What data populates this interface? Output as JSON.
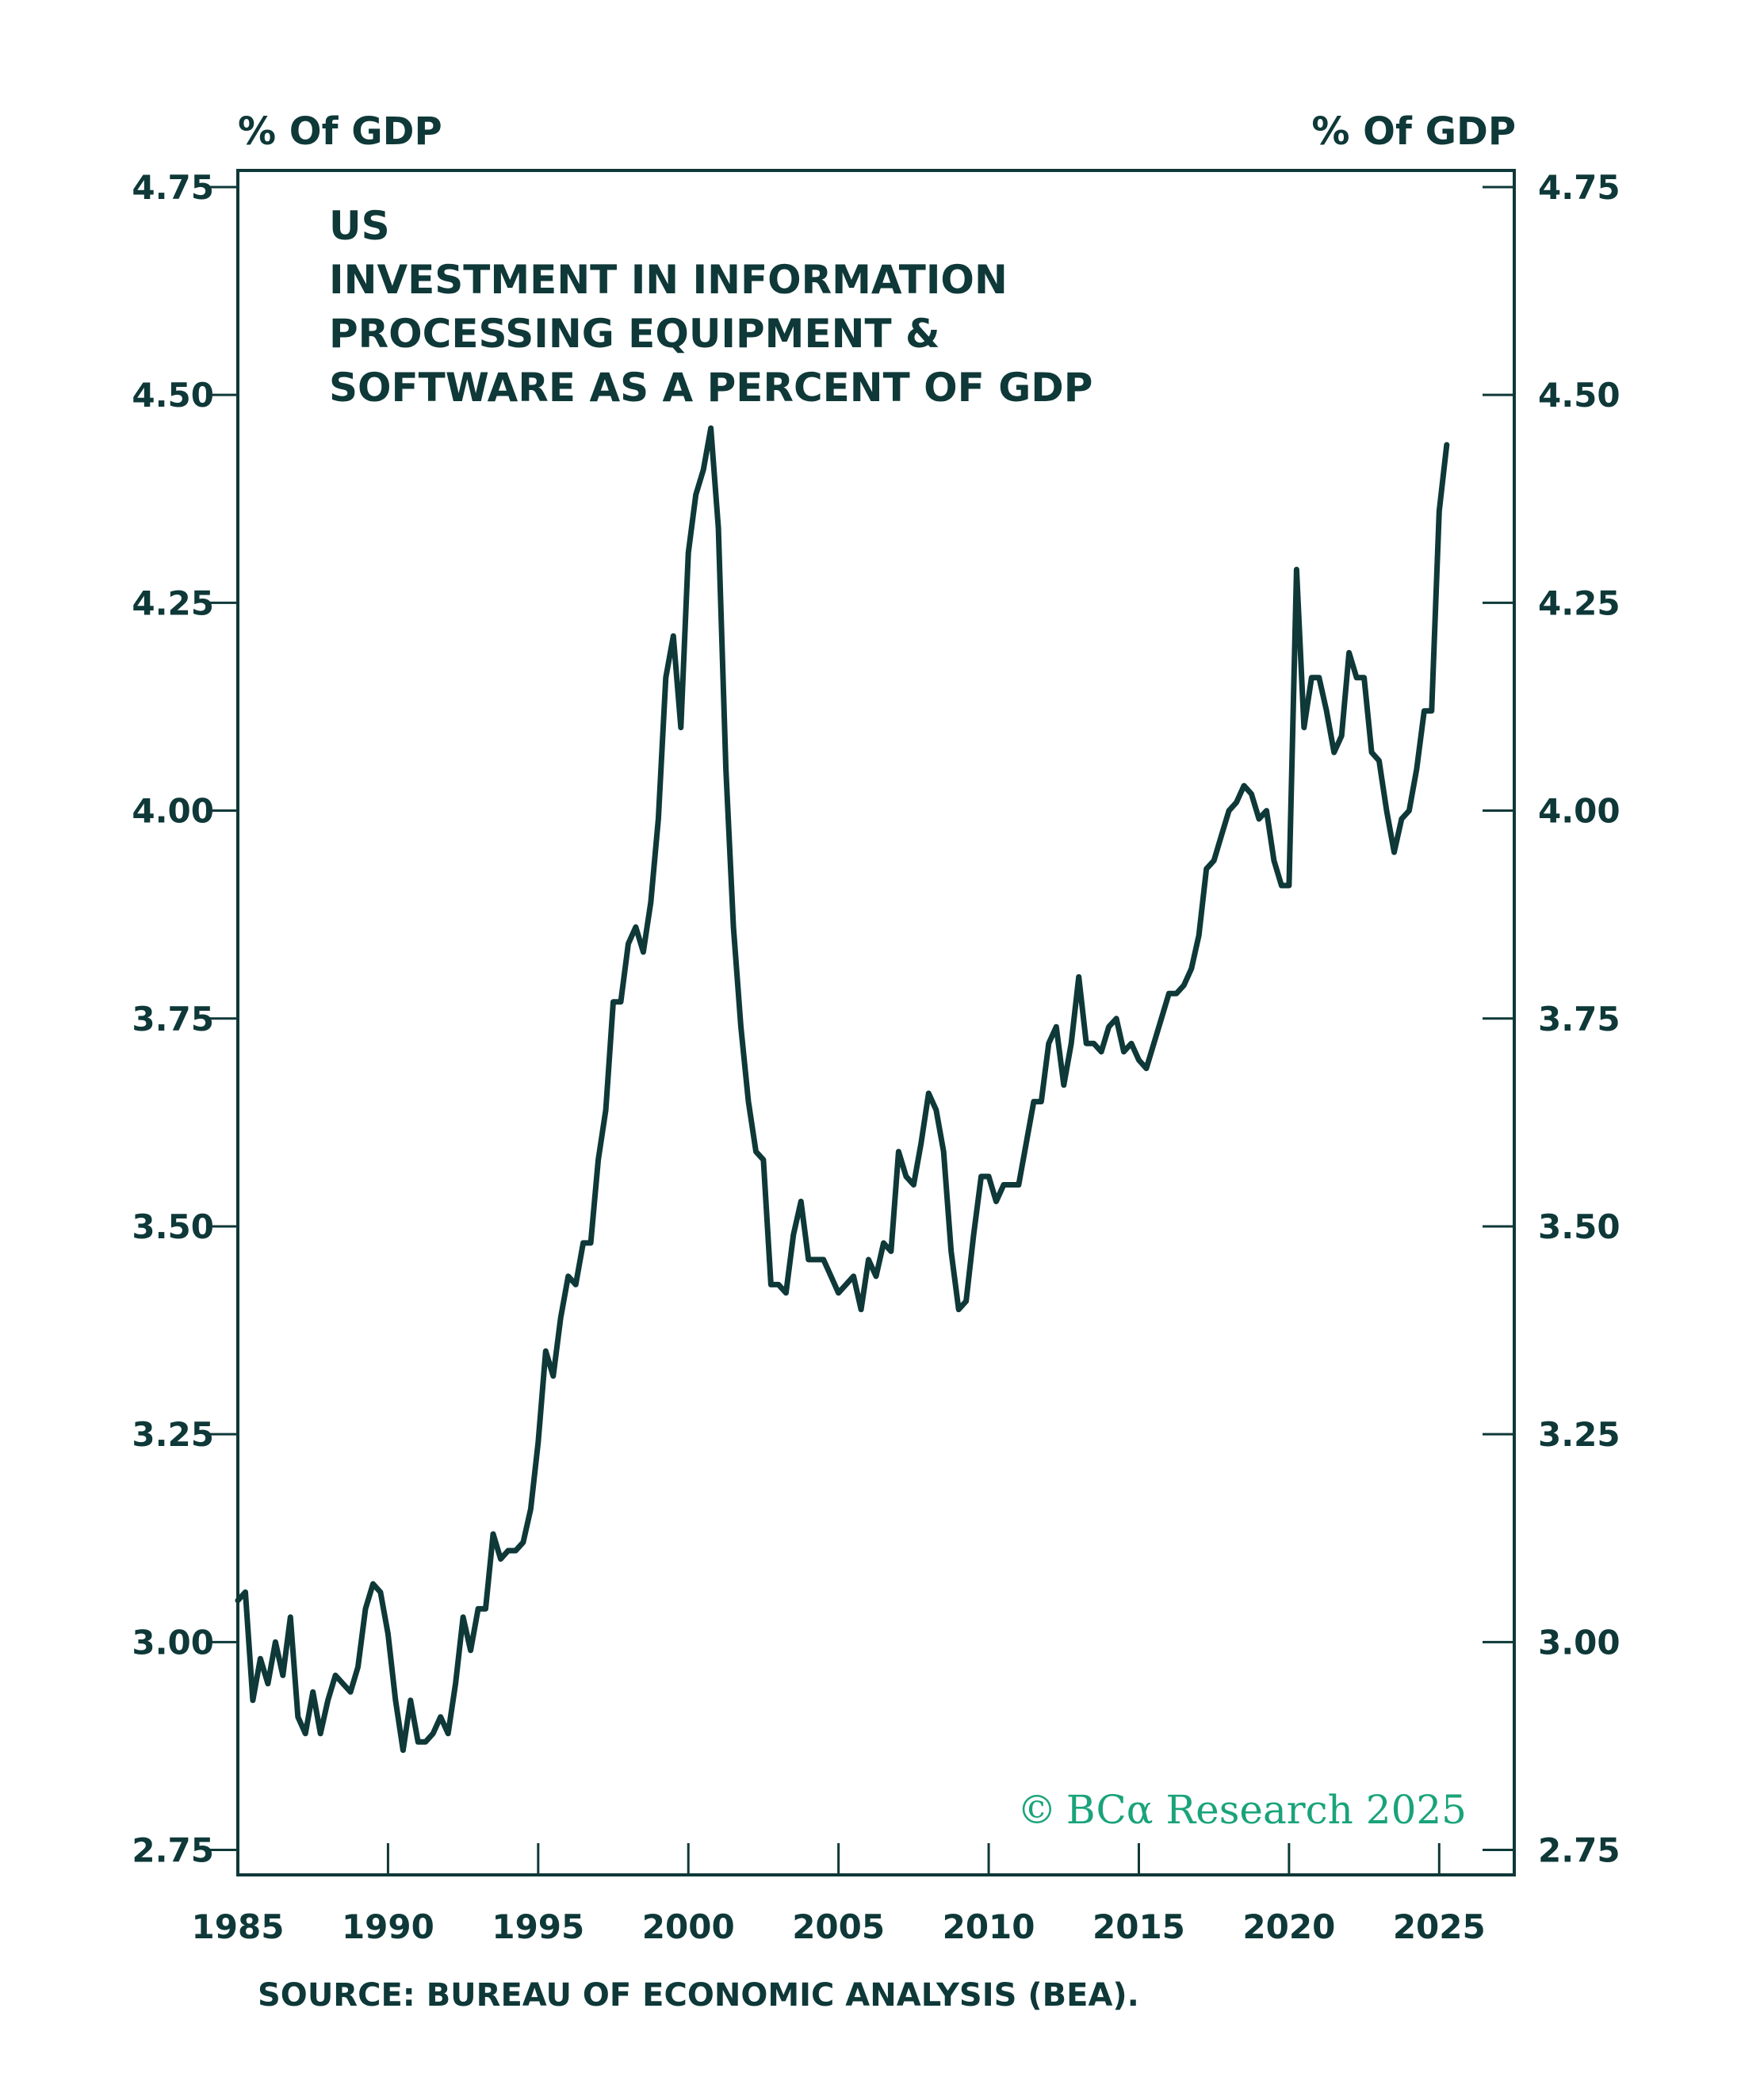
{
  "chart_data": {
    "type": "line",
    "title_lines": [
      "US",
      "INVESTMENT IN INFORMATION",
      "PROCESSING EQUIPMENT &",
      "SOFTWARE AS A PERCENT OF GDP"
    ],
    "ylabel_left": "% Of GDP",
    "ylabel_right": "% Of GDP",
    "xlim": [
      1985,
      2027.5
    ],
    "ylim": [
      2.72,
      4.77
    ],
    "y_ticks": [
      "2.75",
      "3.00",
      "3.25",
      "3.50",
      "3.75",
      "4.00",
      "4.25",
      "4.50",
      "4.75"
    ],
    "x_ticks": [
      "1985",
      "1990",
      "1995",
      "2000",
      "2005",
      "2010",
      "2015",
      "2020",
      "2025"
    ],
    "grid": false,
    "line_color": "#0f3838",
    "series": [
      {
        "x": [
          1985.0,
          1985.25,
          1985.5,
          1985.75,
          1986.0,
          1986.25,
          1986.5,
          1986.75,
          1987.0,
          1987.25,
          1987.5,
          1987.75,
          1988.0,
          1988.25,
          1988.5,
          1988.75,
          1989.0,
          1989.25,
          1989.5,
          1989.75,
          1990.0,
          1990.25,
          1990.5,
          1990.75,
          1991.0,
          1991.25,
          1991.5,
          1991.75,
          1992.0,
          1992.25,
          1992.5,
          1992.75,
          1993.0,
          1993.25,
          1993.5,
          1993.75,
          1994.0,
          1994.25,
          1994.5,
          1994.75,
          1995.0,
          1995.25,
          1995.5,
          1995.75,
          1996.0,
          1996.25,
          1996.5,
          1996.75,
          1997.0,
          1997.25,
          1997.5,
          1997.75,
          1998.0,
          1998.25,
          1998.5,
          1998.75,
          1999.0,
          1999.25,
          1999.5,
          1999.75,
          2000.0,
          2000.25,
          2000.5,
          2000.75,
          2001.0,
          2001.25,
          2001.5,
          2001.75,
          2002.0,
          2002.25,
          2002.5,
          2002.75,
          2003.0,
          2003.25,
          2003.5,
          2003.75,
          2004.0,
          2004.25,
          2004.5,
          2004.75,
          2005.0,
          2005.25,
          2005.5,
          2005.75,
          2006.0,
          2006.25,
          2006.5,
          2006.75,
          2007.0,
          2007.25,
          2007.5,
          2007.75,
          2008.0,
          2008.25,
          2008.5,
          2008.75,
          2009.0,
          2009.25,
          2009.5,
          2009.75,
          2010.0,
          2010.25,
          2010.5,
          2010.75,
          2011.0,
          2011.25,
          2011.5,
          2011.75,
          2012.0,
          2012.25,
          2012.5,
          2012.75,
          2013.0,
          2013.25,
          2013.5,
          2013.75,
          2014.0,
          2014.25,
          2014.5,
          2014.75,
          2015.0,
          2015.25,
          2015.5,
          2015.75,
          2016.0,
          2016.25,
          2016.5,
          2016.75,
          2017.0,
          2017.25,
          2017.5,
          2017.75,
          2018.0,
          2018.25,
          2018.5,
          2018.75,
          2019.0,
          2019.25,
          2019.5,
          2019.75,
          2020.0,
          2020.25,
          2020.5,
          2020.75,
          2021.0,
          2021.25,
          2021.5,
          2021.75,
          2022.0,
          2022.25,
          2022.5,
          2022.75,
          2023.0,
          2023.25,
          2023.5,
          2023.75,
          2024.0,
          2024.25,
          2024.5,
          2024.75,
          2025.0,
          2025.25
        ],
        "values": [
          3.05,
          3.06,
          2.93,
          2.98,
          2.95,
          3.0,
          2.96,
          3.03,
          2.91,
          2.89,
          2.94,
          2.89,
          2.93,
          2.96,
          2.95,
          2.94,
          2.97,
          3.04,
          3.07,
          3.06,
          3.01,
          2.93,
          2.87,
          2.93,
          2.88,
          2.88,
          2.89,
          2.91,
          2.89,
          2.95,
          3.03,
          2.99,
          3.04,
          3.04,
          3.13,
          3.1,
          3.11,
          3.11,
          3.12,
          3.16,
          3.24,
          3.35,
          3.32,
          3.39,
          3.44,
          3.43,
          3.48,
          3.48,
          3.58,
          3.64,
          3.77,
          3.77,
          3.84,
          3.86,
          3.83,
          3.89,
          3.99,
          4.16,
          4.21,
          4.1,
          4.31,
          4.38,
          4.41,
          4.46,
          4.34,
          4.05,
          3.86,
          3.74,
          3.65,
          3.59,
          3.58,
          3.43,
          3.43,
          3.42,
          3.49,
          3.53,
          3.46,
          3.46,
          3.46,
          3.44,
          3.42,
          3.43,
          3.44,
          3.4,
          3.46,
          3.44,
          3.48,
          3.47,
          3.59,
          3.56,
          3.55,
          3.6,
          3.66,
          3.64,
          3.59,
          3.47,
          3.4,
          3.41,
          3.49,
          3.56,
          3.56,
          3.53,
          3.55,
          3.55,
          3.55,
          3.6,
          3.65,
          3.65,
          3.72,
          3.74,
          3.67,
          3.72,
          3.8,
          3.72,
          3.72,
          3.71,
          3.74,
          3.75,
          3.71,
          3.72,
          3.7,
          3.69,
          3.72,
          3.75,
          3.78,
          3.78,
          3.79,
          3.81,
          3.85,
          3.93,
          3.94,
          3.97,
          4.0,
          4.01,
          4.03,
          4.02,
          3.99,
          4.0,
          3.94,
          3.91,
          3.91,
          4.29,
          4.1,
          4.16,
          4.16,
          4.12,
          4.07,
          4.09,
          4.19,
          4.16,
          4.16,
          4.07,
          4.06,
          4.0,
          3.95,
          3.99,
          4.0,
          4.05,
          4.12,
          4.12,
          4.36,
          4.44
        ]
      }
    ],
    "source": "SOURCE: BUREAU OF ECONOMIC ANALYSIS (BEA).",
    "copyright": {
      "symbol": "©",
      "brand": "BC",
      "alpha": "α",
      "rest": " Research 2025",
      "color": "#1aa37a"
    }
  }
}
